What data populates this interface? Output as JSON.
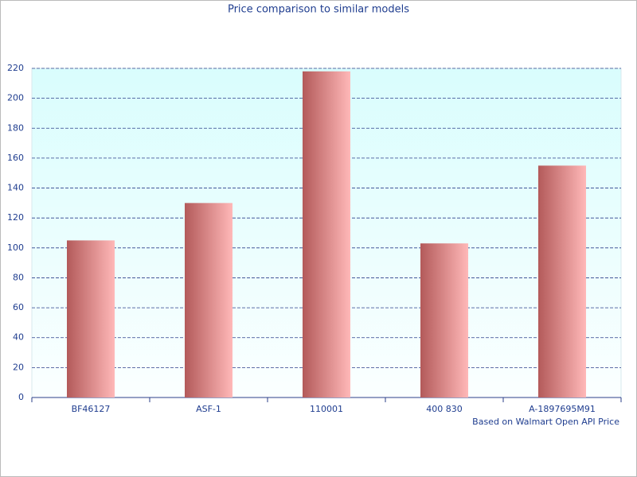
{
  "chart_data": {
    "type": "bar",
    "title": "Price comparison to similar models",
    "categories": [
      "BF46127",
      "ASF-1",
      "110001",
      "400 830",
      "A-1897695M91"
    ],
    "values": [
      105,
      130,
      218,
      103,
      155
    ],
    "color": "#b35a5a",
    "ylim": [
      0,
      220
    ],
    "yticks": [
      0,
      20,
      40,
      60,
      80,
      100,
      120,
      140,
      160,
      180,
      200,
      220
    ],
    "grid": true,
    "caption": "Based on Walmart Open API Price"
  }
}
